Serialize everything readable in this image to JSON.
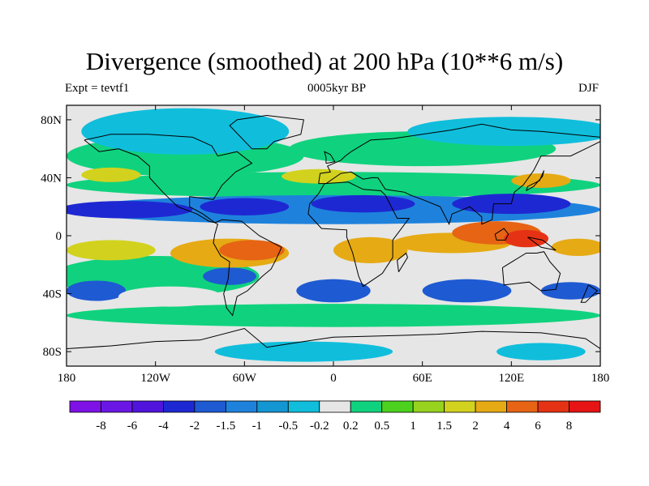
{
  "title": "Divergence (smoothed) at 200 hPa (10**6 m/s)",
  "subtitle_left": "Expt = tevtf1",
  "subtitle_center": "0005kyr BP",
  "subtitle_right": "DJF",
  "colors": {
    "palette": [
      "#7e12e6",
      "#6a17e6",
      "#5014dc",
      "#1e28d2",
      "#1e5ad2",
      "#1e82dc",
      "#1496d2",
      "#10bedc",
      "#e6e6e6",
      "#10d27e",
      "#4cd21e",
      "#96d21e",
      "#d2d21e",
      "#e6aa14",
      "#e66414",
      "#e63214",
      "#e61414"
    ],
    "land": "#000000",
    "frame": "#000000"
  },
  "chart_data": {
    "type": "filled-contour-map",
    "variable": "Divergence (smoothed) at 200 hPa",
    "units": "10**6 m/s",
    "experiment": "tevtf1",
    "period": "0005kyr BP",
    "season": "DJF",
    "lon_ticks": [
      "180",
      "120W",
      "60W",
      "0",
      "60E",
      "120E",
      "180"
    ],
    "lat_ticks": [
      "80N",
      "40N",
      "0",
      "40S",
      "80S"
    ],
    "lon_range": [
      -180,
      180
    ],
    "lat_range": [
      -90,
      90
    ],
    "colorbar_labels": [
      "-8",
      "-6",
      "-4",
      "-2",
      "-1.5",
      "-1",
      "-0.5",
      "-0.2",
      "0.2",
      "0.5",
      "1",
      "1.5",
      "2",
      "4",
      "6",
      "8"
    ]
  }
}
